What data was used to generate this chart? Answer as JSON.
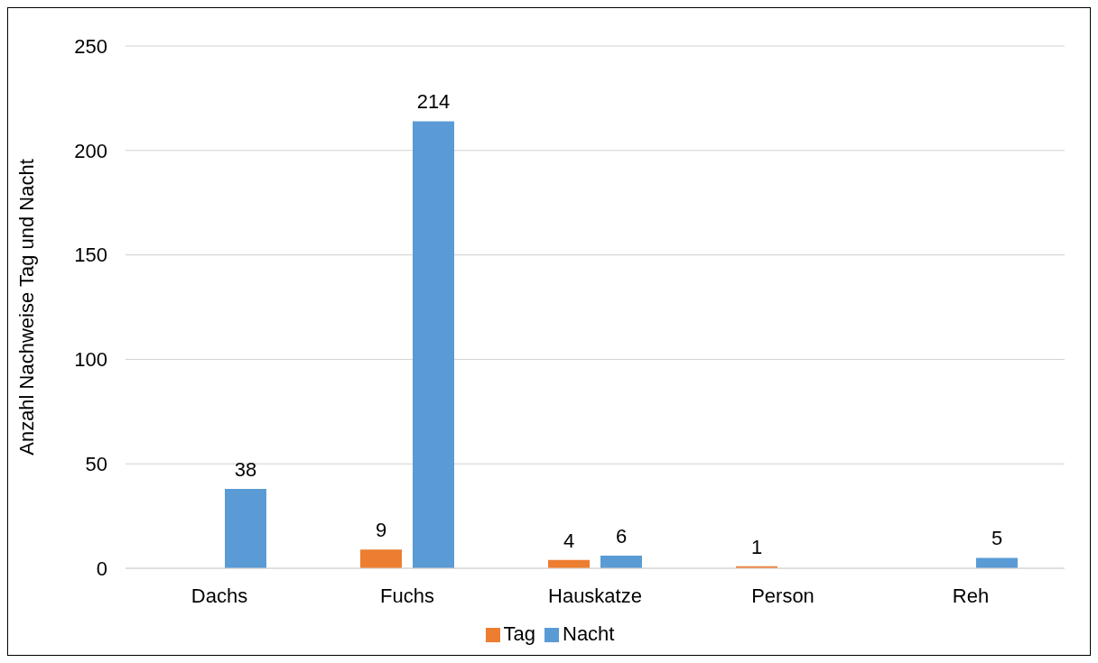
{
  "chart_data": {
    "type": "bar",
    "ylabel": "Anzahl Nachweise Tag und Nacht",
    "categories": [
      "Dachs",
      "Fuchs",
      "Hauskatze",
      "Person",
      "Reh"
    ],
    "series": [
      {
        "name": "Tag",
        "color": "#ed7d31",
        "values": [
          null,
          9,
          4,
          1,
          null
        ]
      },
      {
        "name": "Nacht",
        "color": "#5b9bd5",
        "values": [
          38,
          214,
          6,
          null,
          5
        ]
      }
    ],
    "ylim": [
      0,
      250
    ],
    "yticks": [
      0,
      50,
      100,
      150,
      200,
      250
    ],
    "grid": "y",
    "legend": "bottom",
    "data_labels": true
  }
}
